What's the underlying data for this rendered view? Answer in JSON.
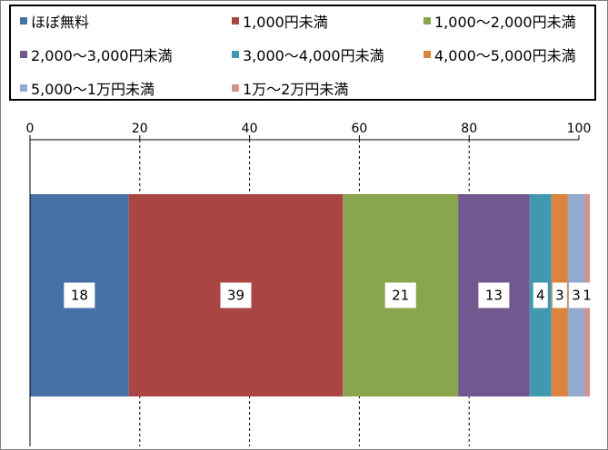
{
  "chart_data": {
    "type": "bar",
    "orientation": "horizontal",
    "stacked": true,
    "xlim": [
      0,
      100
    ],
    "ticks": [
      0,
      20,
      40,
      60,
      80,
      100
    ],
    "grid": true,
    "legend_position": "top",
    "series": [
      {
        "name": "ほぼ無料",
        "value": 18,
        "label": "18",
        "color": "#4571a7"
      },
      {
        "name": "1,000円未満",
        "value": 39,
        "label": "39",
        "color": "#a94643"
      },
      {
        "name": "1,000〜2,000円未満",
        "value": 21,
        "label": "21",
        "color": "#89a54e"
      },
      {
        "name": "2,000〜3,000円未満",
        "value": 13,
        "label": "13",
        "color": "#71588f"
      },
      {
        "name": "3,000〜4,000円未満",
        "value": 4,
        "label": "4",
        "color": "#4198af"
      },
      {
        "name": "4,000〜5,000円未満",
        "value": 3,
        "label": "3",
        "color": "#db843d"
      },
      {
        "name": "5,000〜1万円未満",
        "value": 3,
        "label": "3",
        "color": "#93a9cf"
      },
      {
        "name": "1万〜2万円未満",
        "value": 1,
        "label": "1",
        "color": "#d19392"
      }
    ]
  }
}
